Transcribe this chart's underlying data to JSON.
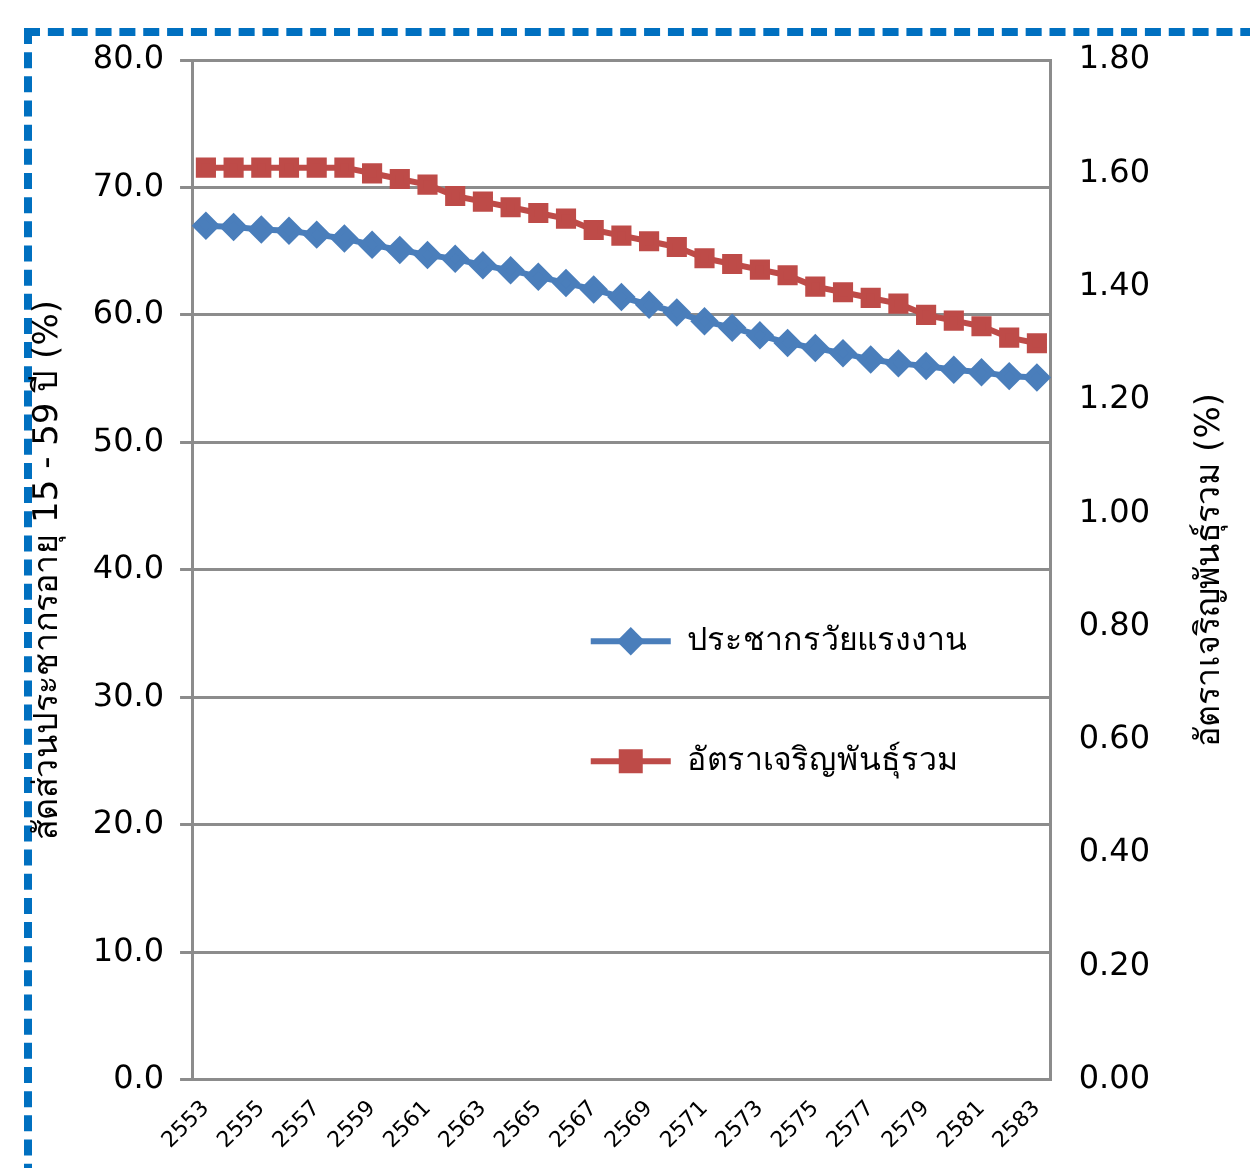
{
  "chart_data": {
    "type": "line",
    "ylabel": "สัดส่วนประชากรอายุ 15 - 59 ปี (%)",
    "y2label": "อัตราเจริญพันธุ์รวม (%)",
    "categories": [
      "2553",
      null,
      "2555",
      null,
      "2557",
      null,
      "2559",
      null,
      "2561",
      null,
      "2563",
      null,
      "2565",
      null,
      "2567",
      null,
      "2569",
      null,
      "2571",
      null,
      "2573",
      null,
      "2575",
      null,
      "2577",
      null,
      "2579",
      null,
      "2581",
      null,
      "2583"
    ],
    "series": [
      {
        "name": "ประชากรวัยแรงงาน",
        "color": "#4a7ebb",
        "marker": "diamond",
        "values": [
          67.0,
          66.9,
          66.7,
          66.6,
          66.3,
          66.0,
          65.5,
          65.1,
          64.7,
          64.4,
          63.9,
          63.5,
          63.0,
          62.5,
          62.0,
          61.4,
          60.8,
          60.2,
          59.5,
          59.0,
          58.4,
          57.8,
          57.4,
          57.0,
          56.5,
          56.2,
          56.0,
          55.7,
          55.5,
          55.2,
          55.1
        ]
      },
      {
        "name": "อัตราเจริญพันธุ์รวม",
        "color": "#be4b48",
        "marker": "square",
        "axis": "y2",
        "values": [
          1.61,
          1.61,
          1.61,
          1.61,
          1.61,
          1.61,
          1.6,
          1.59,
          1.58,
          1.56,
          1.55,
          1.54,
          1.53,
          1.52,
          1.5,
          1.49,
          1.48,
          1.47,
          1.45,
          1.44,
          1.43,
          1.42,
          1.4,
          1.39,
          1.38,
          1.37,
          1.35,
          1.34,
          1.33,
          1.31,
          1.3
        ]
      }
    ],
    "ylim": [
      0,
      80
    ],
    "yticks": [
      {
        "value": 0,
        "label": "0.0"
      },
      {
        "value": 10,
        "label": "10.0"
      },
      {
        "value": 20,
        "label": "20.0"
      },
      {
        "value": 30,
        "label": "30.0"
      },
      {
        "value": 40,
        "label": "40.0"
      },
      {
        "value": 50,
        "label": "50.0"
      },
      {
        "value": 60,
        "label": "60.0"
      },
      {
        "value": 70,
        "label": "70.0"
      },
      {
        "value": 80,
        "label": "80.0"
      }
    ],
    "y2lim": [
      0,
      1.8
    ],
    "y2ticks": [
      {
        "value": 0,
        "label": "0.00"
      },
      {
        "value": 0.2,
        "label": "0.20"
      },
      {
        "value": 0.4,
        "label": "0.40"
      },
      {
        "value": 0.6,
        "label": "0.60"
      },
      {
        "value": 0.8,
        "label": "0.80"
      },
      {
        "value": 1.0,
        "label": "1.00"
      },
      {
        "value": 1.2,
        "label": "1.20"
      },
      {
        "value": 1.4,
        "label": "1.40"
      },
      {
        "value": 1.6,
        "label": "1.60"
      },
      {
        "value": 1.8,
        "label": "1.80"
      }
    ],
    "grid": "y",
    "legend": "right",
    "line_style": "solid"
  }
}
